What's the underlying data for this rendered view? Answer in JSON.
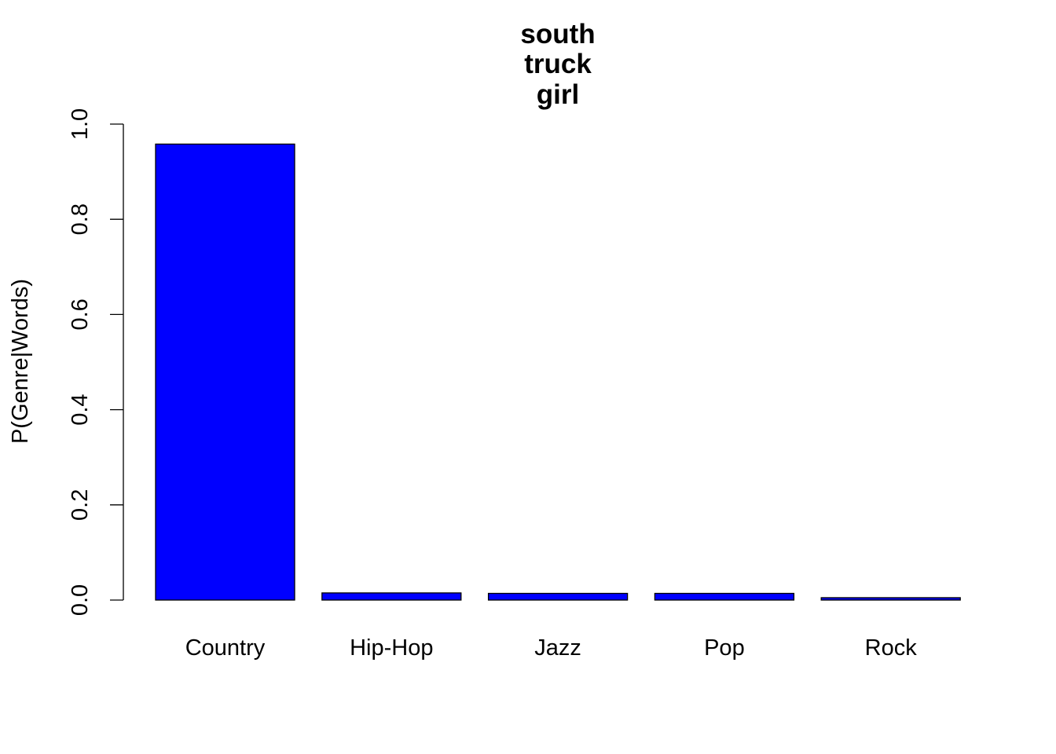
{
  "chart_data": {
    "type": "bar",
    "title_lines": [
      "south",
      "truck",
      "girl"
    ],
    "categories": [
      "Country",
      "Hip-Hop",
      "Jazz",
      "Pop",
      "Rock"
    ],
    "values": [
      0.958,
      0.015,
      0.014,
      0.014,
      0.005
    ],
    "xlabel": "",
    "ylabel": "P(Genre|Words)",
    "ylim": [
      0,
      1
    ],
    "yticks": [
      "0.0",
      "0.2",
      "0.4",
      "0.6",
      "0.8",
      "1.0"
    ],
    "bar_color": "#0000FF",
    "grid": false,
    "legend": "none"
  }
}
